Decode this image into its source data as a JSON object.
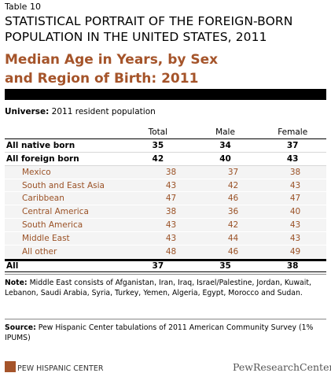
{
  "header": {
    "label": "Table 10",
    "title": "STATISTICAL PORTRAIT OF THE FOREIGN-BORN POPULATION IN THE UNITED STATES, 2011",
    "subtitle": "Median Age in Years, by Sex and Region of Birth: 2011"
  },
  "universe": {
    "label": "Universe:",
    "text": "2011 resident population"
  },
  "table": {
    "columns": [
      "Total",
      "Male",
      "Female"
    ],
    "rows": [
      {
        "label": "All native born",
        "values": [
          35,
          34,
          37
        ]
      },
      {
        "label": "All foreign born",
        "values": [
          42,
          40,
          43
        ]
      },
      {
        "label": "Mexico",
        "values": [
          38,
          37,
          38
        ]
      },
      {
        "label": "South and East Asia",
        "values": [
          43,
          42,
          43
        ]
      },
      {
        "label": "Caribbean",
        "values": [
          47,
          46,
          47
        ]
      },
      {
        "label": "Central America",
        "values": [
          38,
          36,
          40
        ]
      },
      {
        "label": "South America",
        "values": [
          43,
          42,
          43
        ]
      },
      {
        "label": "Middle East",
        "values": [
          43,
          44,
          43
        ]
      },
      {
        "label": "All other",
        "values": [
          48,
          46,
          49
        ]
      },
      {
        "label": "All",
        "values": [
          37,
          35,
          38
        ]
      }
    ]
  },
  "note": {
    "label": "Note:",
    "text": "Middle East consists of Afganistan, Iran, Iraq, Israel/Palestine, Jordan, Kuwait, Lebanon, Saudi Arabia, Syria, Turkey, Yemen, Algeria, Egypt, Morocco and Sudan."
  },
  "source": {
    "label": "Source:",
    "text": "Pew Hispanic Center tabulations of 2011 American Community Survey (1% IPUMS)"
  },
  "footer": {
    "left": "PEW HISPANIC CENTER",
    "right": "PewResearchCenter"
  }
}
